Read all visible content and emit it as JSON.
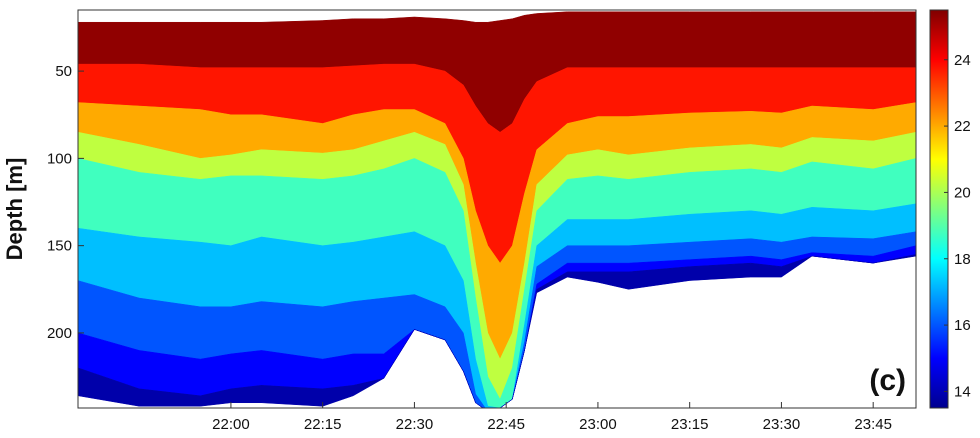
{
  "chart_data": {
    "type": "heatmap",
    "title": "",
    "panel_label": "(c)",
    "xlabel": "",
    "ylabel": "Depth [m]",
    "x_range": [
      "21:35",
      "23:52"
    ],
    "x_ticks": [
      "22:00",
      "22:15",
      "22:30",
      "22:45",
      "23:00",
      "23:15",
      "23:30",
      "23:45"
    ],
    "y_range": [
      243,
      15
    ],
    "y_ticks": [
      50,
      100,
      150,
      200
    ],
    "y_reversed": true,
    "colorbar": {
      "colormap": "jet",
      "range": [
        13.5,
        25.5
      ],
      "ticks": [
        14,
        16,
        18,
        20,
        22,
        24
      ]
    },
    "x_times": [
      "21:35",
      "21:45",
      "21:55",
      "22:00",
      "22:05",
      "22:15",
      "22:20",
      "22:25",
      "22:30",
      "22:35",
      "22:38",
      "22:40",
      "22:42",
      "22:44",
      "22:46",
      "22:48",
      "22:50",
      "22:55",
      "23:00",
      "23:05",
      "23:15",
      "23:25",
      "23:30",
      "23:35",
      "23:45",
      "23:52"
    ],
    "surface_depth": [
      22,
      22,
      22,
      22,
      22,
      21,
      20,
      20,
      19,
      20,
      21,
      22,
      22,
      21,
      20,
      18,
      17,
      16,
      16,
      16,
      16,
      16,
      16,
      16,
      16,
      16
    ],
    "bottom_depth": [
      236,
      242,
      242,
      240,
      240,
      242,
      236,
      226,
      198,
      204,
      222,
      240,
      245,
      243,
      238,
      210,
      177,
      168,
      171,
      175,
      170,
      168,
      168,
      156,
      160,
      156
    ],
    "isotherm_depths": {
      "24.5": [
        46,
        46,
        48,
        48,
        48,
        48,
        47,
        46,
        46,
        50,
        58,
        70,
        80,
        85,
        80,
        66,
        56,
        48,
        48,
        48,
        48,
        48,
        48,
        48,
        48,
        48
      ],
      "23.0": [
        68,
        70,
        72,
        75,
        75,
        80,
        75,
        72,
        72,
        80,
        100,
        130,
        150,
        160,
        150,
        120,
        95,
        80,
        76,
        76,
        74,
        73,
        74,
        70,
        72,
        68
      ],
      "21.0": [
        85,
        92,
        100,
        98,
        95,
        97,
        95,
        90,
        85,
        92,
        115,
        160,
        200,
        215,
        200,
        160,
        115,
        98,
        95,
        98,
        94,
        92,
        94,
        88,
        90,
        85
      ],
      "19.5": [
        100,
        108,
        112,
        110,
        110,
        112,
        110,
        106,
        100,
        108,
        130,
        180,
        225,
        238,
        220,
        175,
        130,
        112,
        110,
        112,
        108,
        106,
        108,
        102,
        106,
        100
      ],
      "18.0": [
        140,
        145,
        148,
        150,
        145,
        150,
        148,
        145,
        142,
        150,
        170,
        215,
        242,
        248,
        238,
        195,
        150,
        135,
        135,
        135,
        132,
        130,
        132,
        128,
        130,
        126
      ],
      "16.5": [
        170,
        180,
        185,
        185,
        182,
        185,
        182,
        180,
        178,
        185,
        200,
        235,
        248,
        250,
        245,
        205,
        162,
        150,
        150,
        150,
        148,
        146,
        148,
        145,
        146,
        142
      ],
      "15.5": [
        200,
        210,
        215,
        212,
        210,
        215,
        212,
        212,
        210,
        215,
        225,
        245,
        250,
        250,
        248,
        212,
        172,
        160,
        160,
        160,
        158,
        156,
        158,
        154,
        156,
        150
      ],
      "14.5": [
        220,
        232,
        236,
        232,
        230,
        232,
        230,
        230,
        225,
        228,
        235,
        248,
        250,
        250,
        250,
        215,
        175,
        165,
        165,
        165,
        162,
        160,
        162,
        158,
        160,
        155
      ]
    }
  }
}
